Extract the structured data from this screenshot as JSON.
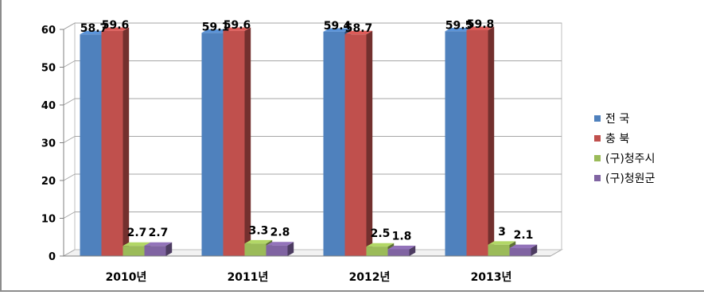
{
  "chart_data": {
    "type": "bar",
    "categories": [
      "2010년",
      "2011년",
      "2012년",
      "2013년"
    ],
    "series": [
      {
        "name": "전 국",
        "values": [
          58.7,
          59.1,
          59.4,
          59.5
        ],
        "color": "#4f81bd"
      },
      {
        "name": "충 북",
        "values": [
          59.6,
          59.6,
          58.7,
          59.8
        ],
        "color": "#c0504d"
      },
      {
        "name": "(구)청주시",
        "values": [
          2.7,
          3.3,
          2.5,
          3
        ],
        "color": "#9bbb59"
      },
      {
        "name": "(구)청원군",
        "values": [
          2.7,
          2.8,
          1.8,
          2.1
        ],
        "color": "#8064a2"
      }
    ],
    "data_labels": [
      [
        "58.7",
        "59.6",
        "2.7",
        "2.7"
      ],
      [
        "59.1",
        "59.6",
        "3.3",
        "2.8"
      ],
      [
        "59.4",
        "58.7",
        "2.5",
        "1.8"
      ],
      [
        "59.5",
        "59.8",
        "3",
        "2.1"
      ]
    ],
    "ylim": [
      0,
      60
    ],
    "yticks": [
      0,
      10,
      20,
      30,
      40,
      50,
      60
    ],
    "grid": true,
    "legend": "right",
    "style": "3d-bar",
    "title": "",
    "xlabel": "",
    "ylabel": ""
  }
}
